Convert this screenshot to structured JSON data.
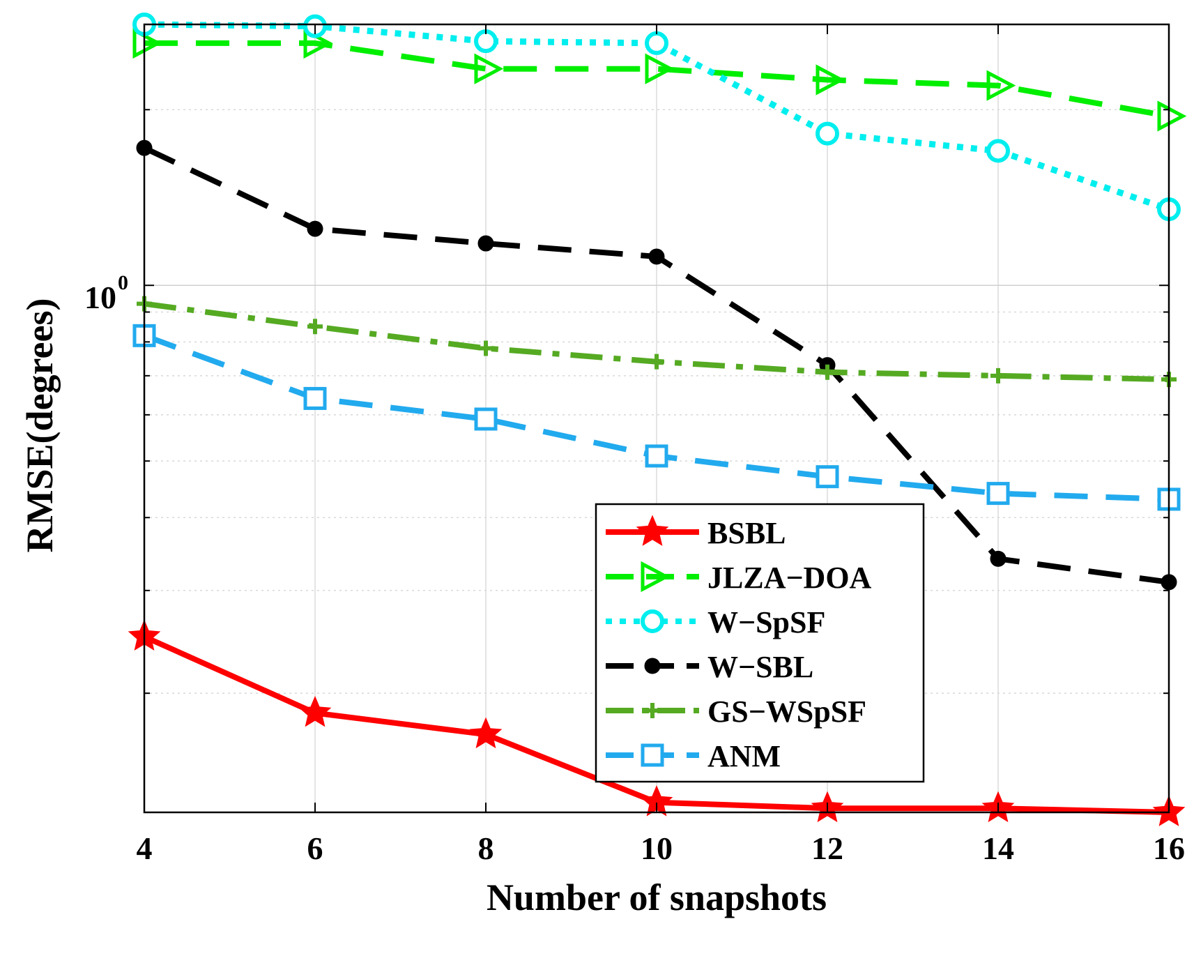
{
  "chart_data": {
    "type": "line",
    "title": "",
    "xlabel": "Number of snapshots",
    "ylabel": "RMSE(degrees)",
    "yscale": "log",
    "x": [
      4,
      6,
      8,
      10,
      12,
      14,
      16
    ],
    "xlim": [
      4,
      16
    ],
    "xticks": [
      "4",
      "6",
      "8",
      "10",
      "12",
      "14",
      "16"
    ],
    "ylim": [
      0.125,
      2.8
    ],
    "ytick_label_base": "10",
    "ytick_label_exp": "0",
    "grid": true,
    "legend_position": "lower-right",
    "series": [
      {
        "name": "BSBL",
        "color": "#ff0000",
        "marker": "star",
        "dash": "solid",
        "values": [
          0.25,
          0.185,
          0.17,
          0.13,
          0.127,
          0.127,
          0.125
        ]
      },
      {
        "name": "JLZA−DOA",
        "color": "#00ee00",
        "marker": "triangle-right",
        "dash": "dash",
        "values": [
          2.6,
          2.6,
          2.35,
          2.35,
          2.25,
          2.2,
          1.95
        ]
      },
      {
        "name": "W−SpSF",
        "color": "#00eeee",
        "marker": "circle",
        "dash": "dot",
        "values": [
          2.8,
          2.78,
          2.62,
          2.6,
          1.82,
          1.7,
          1.35
        ]
      },
      {
        "name": "W−SBL",
        "color": "#000000",
        "marker": "dot",
        "dash": "dash",
        "values": [
          1.72,
          1.25,
          1.18,
          1.12,
          0.73,
          0.34,
          0.31
        ]
      },
      {
        "name": "GS−WSpSF",
        "color": "#55aa22",
        "marker": "plus",
        "dash": "dashdot",
        "values": [
          0.93,
          0.85,
          0.78,
          0.74,
          0.71,
          0.7,
          0.69
        ]
      },
      {
        "name": "ANM",
        "color": "#22aaee",
        "marker": "square",
        "dash": "dash",
        "values": [
          0.82,
          0.64,
          0.59,
          0.51,
          0.47,
          0.44,
          0.43
        ]
      }
    ]
  }
}
